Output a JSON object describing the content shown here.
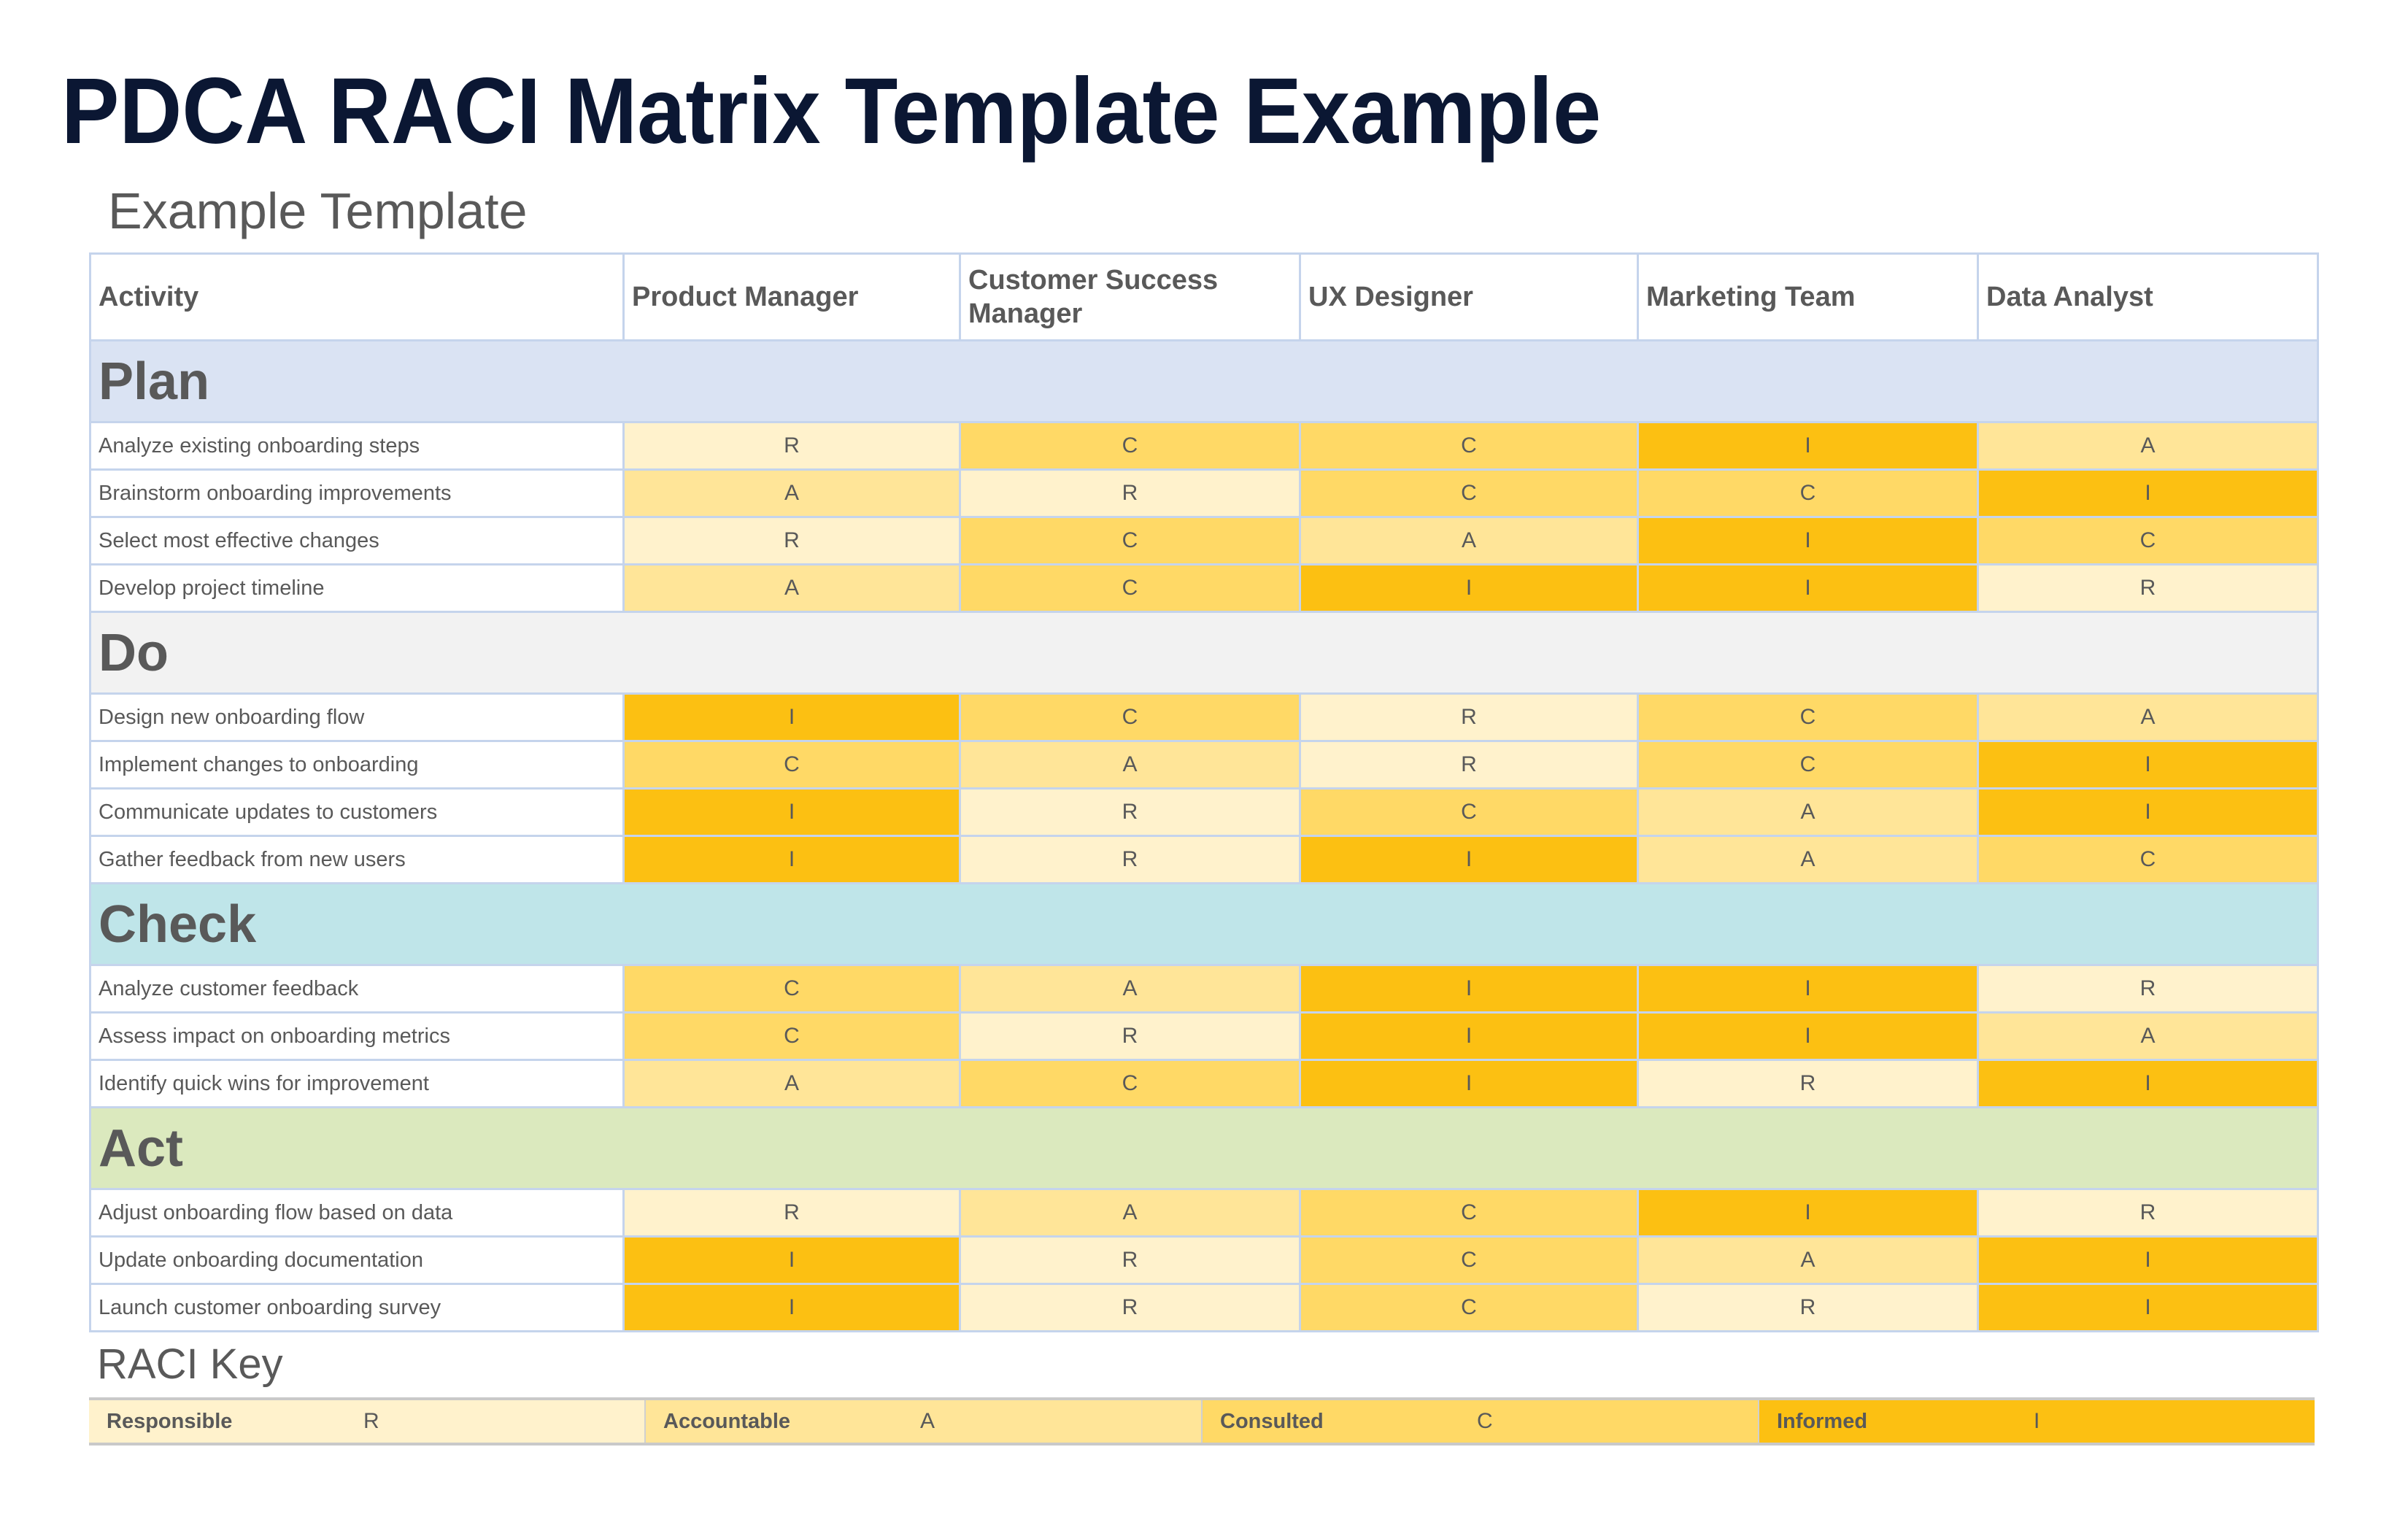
{
  "header": {
    "title": "PDCA RACI Matrix Template Example",
    "subtitle": "Example Template"
  },
  "table": {
    "columns": [
      "Activity",
      "Product Manager",
      "Customer Success Manager",
      "UX Designer",
      "Marketing Team",
      "Data Analyst"
    ],
    "sections": [
      {
        "name": "Plan",
        "rows": [
          {
            "activity": "Analyze existing onboarding steps",
            "values": [
              "R",
              "C",
              "C",
              "I",
              "A"
            ]
          },
          {
            "activity": "Brainstorm onboarding improvements",
            "values": [
              "A",
              "R",
              "C",
              "C",
              "I"
            ]
          },
          {
            "activity": "Select most effective changes",
            "values": [
              "R",
              "C",
              "A",
              "I",
              "C"
            ]
          },
          {
            "activity": "Develop project timeline",
            "values": [
              "A",
              "C",
              "I",
              "I",
              "R"
            ]
          }
        ]
      },
      {
        "name": "Do",
        "rows": [
          {
            "activity": "Design new onboarding flow",
            "values": [
              "I",
              "C",
              "R",
              "C",
              "A"
            ]
          },
          {
            "activity": "Implement changes to onboarding",
            "values": [
              "C",
              "A",
              "R",
              "C",
              "I"
            ]
          },
          {
            "activity": "Communicate updates to customers",
            "values": [
              "I",
              "R",
              "C",
              "A",
              "I"
            ]
          },
          {
            "activity": "Gather feedback from new users",
            "values": [
              "I",
              "R",
              "I",
              "A",
              "C"
            ]
          }
        ]
      },
      {
        "name": "Check",
        "rows": [
          {
            "activity": "Analyze customer feedback",
            "values": [
              "C",
              "A",
              "I",
              "I",
              "R"
            ]
          },
          {
            "activity": "Assess impact on onboarding metrics",
            "values": [
              "C",
              "R",
              "I",
              "I",
              "A"
            ]
          },
          {
            "activity": "Identify quick wins for improvement",
            "values": [
              "A",
              "C",
              "I",
              "R",
              "I"
            ]
          }
        ]
      },
      {
        "name": "Act",
        "rows": [
          {
            "activity": "Adjust onboarding flow based on data",
            "values": [
              "R",
              "A",
              "C",
              "I",
              "R"
            ]
          },
          {
            "activity": "Update onboarding documentation",
            "values": [
              "I",
              "R",
              "C",
              "A",
              "I"
            ]
          },
          {
            "activity": "Launch customer onboarding survey",
            "values": [
              "I",
              "R",
              "C",
              "R",
              "I"
            ]
          }
        ]
      }
    ]
  },
  "key": {
    "title": "RACI Key",
    "items": [
      {
        "label": "Responsible",
        "code": "R",
        "color": "#FFF2CC"
      },
      {
        "label": "Accountable",
        "code": "A",
        "color": "#FFE598"
      },
      {
        "label": "Consulted",
        "code": "C",
        "color": "#FFD966"
      },
      {
        "label": "Informed",
        "code": "I",
        "color": "#FCC012"
      }
    ]
  },
  "colors": {
    "title": "#0B1733",
    "text": "#595959",
    "border": "#C5D4EC",
    "band_plan": "#DAE3F3",
    "band_do": "#F2F2F2",
    "band_check": "#BFE5E9",
    "band_act": "#DBE9BE"
  }
}
